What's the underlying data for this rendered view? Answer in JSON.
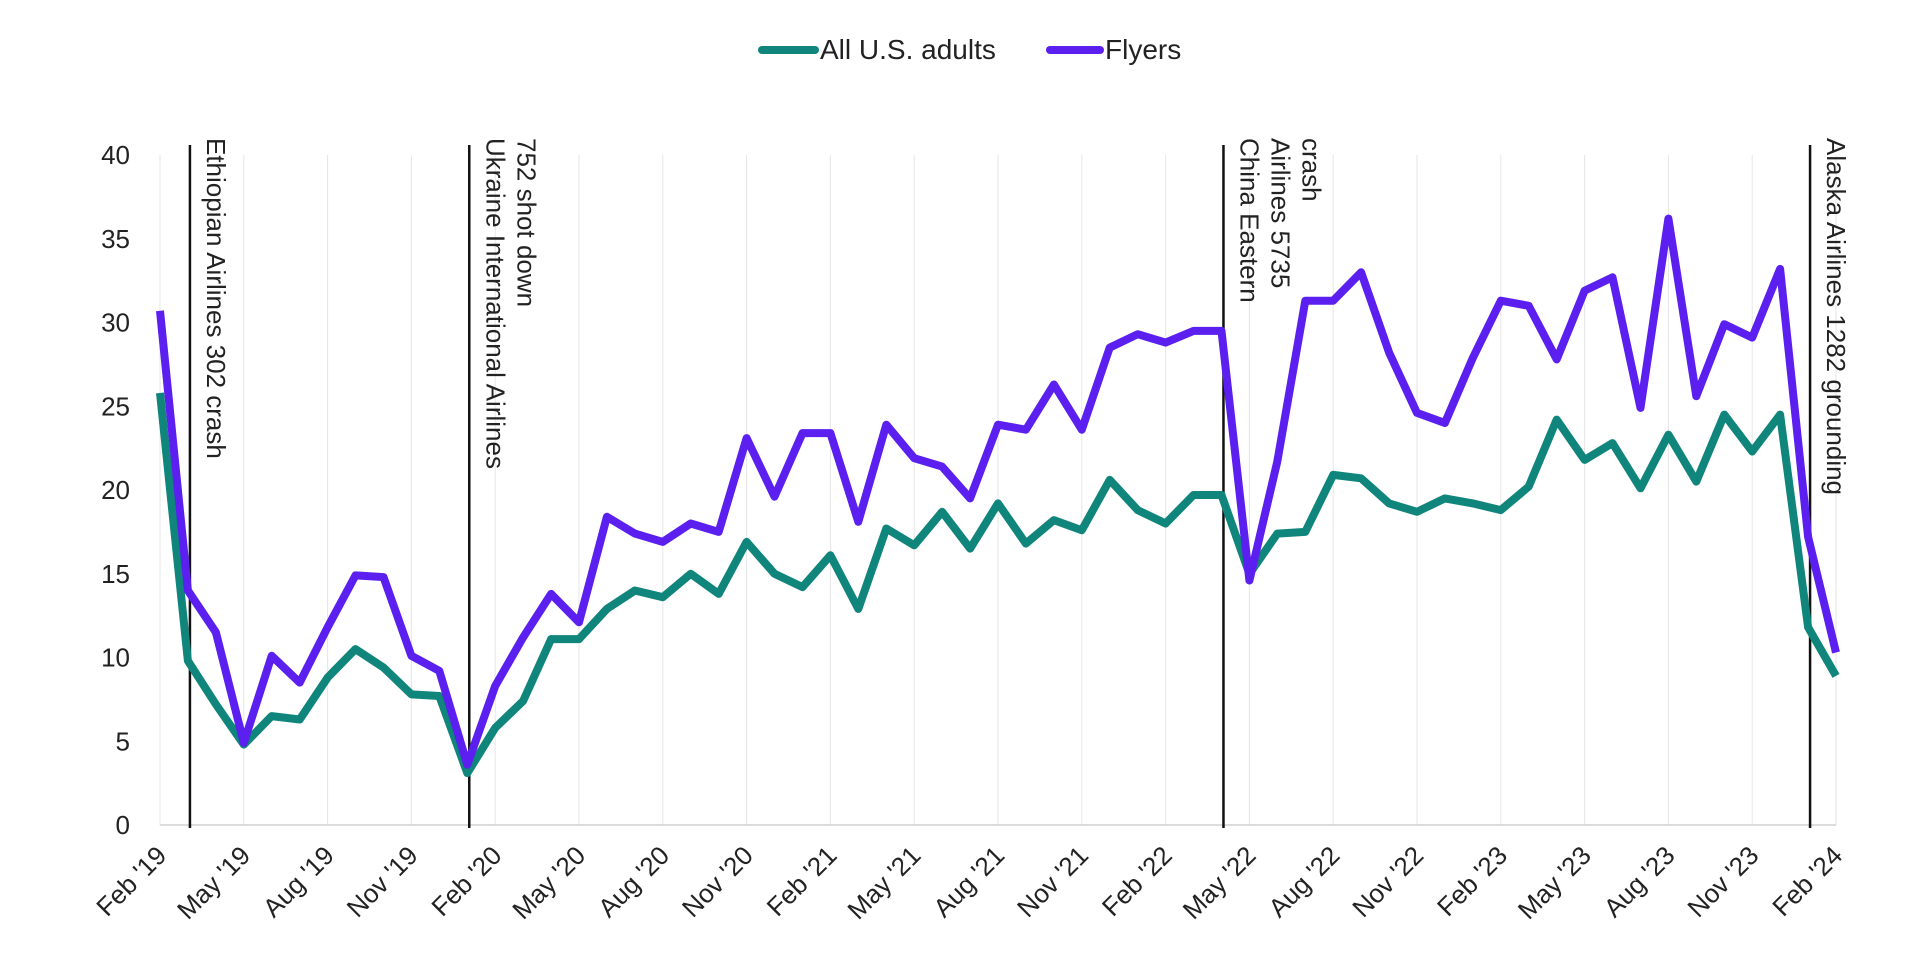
{
  "chart_data": {
    "type": "line",
    "title": "",
    "xlabel": "",
    "ylabel": "",
    "ylim": [
      0,
      40
    ],
    "yticks": [
      0,
      5,
      10,
      15,
      20,
      25,
      30,
      35,
      40
    ],
    "grid": "vertical",
    "legend": "top-center",
    "x_start": "Feb 2019",
    "x_end": "Feb 2024",
    "xtick_labels": [
      "Feb '19",
      "May '19",
      "Aug '19",
      "Nov '19",
      "Feb '20",
      "May '20",
      "Aug '20",
      "Nov '20",
      "Feb '21",
      "May '21",
      "Aug '21",
      "Nov '21",
      "Feb '22",
      "May '22",
      "Aug '22",
      "Nov '22",
      "Feb '23",
      "May '23",
      "Aug '23",
      "Nov '23",
      "Feb '24"
    ],
    "series": [
      {
        "name": "All U.S. adults",
        "color": "#0f857b",
        "values": [
          25.8,
          9.8,
          7.2,
          4.8,
          6.5,
          6.3,
          8.8,
          10.5,
          9.4,
          7.8,
          7.7,
          3.1,
          5.8,
          7.4,
          11.1,
          11.1,
          12.9,
          14.0,
          13.6,
          15.0,
          13.8,
          16.9,
          15.0,
          14.2,
          16.1,
          12.9,
          17.7,
          16.7,
          18.7,
          16.5,
          19.2,
          16.8,
          18.2,
          17.6,
          20.6,
          18.8,
          18.0,
          19.7,
          19.7,
          15.0,
          17.4,
          17.5,
          20.9,
          20.7,
          19.2,
          18.7,
          19.5,
          19.2,
          18.8,
          20.2,
          24.2,
          21.8,
          22.8,
          20.1,
          23.3,
          20.5,
          24.5,
          22.3,
          24.5,
          11.8,
          8.9
        ]
      },
      {
        "name": "Flyers",
        "color": "#5b1ff0",
        "values": [
          30.7,
          14.0,
          11.5,
          4.9,
          10.1,
          8.5,
          11.8,
          14.9,
          14.8,
          10.1,
          9.2,
          3.6,
          8.3,
          11.2,
          13.8,
          12.1,
          18.4,
          17.4,
          16.9,
          18.0,
          17.5,
          23.1,
          19.6,
          23.4,
          23.4,
          18.1,
          23.9,
          21.9,
          21.4,
          19.5,
          23.9,
          23.6,
          26.3,
          23.6,
          28.5,
          29.3,
          28.8,
          29.5,
          29.5,
          14.6,
          21.7,
          31.3,
          31.3,
          33.0,
          28.2,
          24.6,
          24.0,
          27.9,
          31.3,
          31.0,
          27.8,
          31.9,
          32.7,
          24.9,
          36.2,
          25.6,
          29.9,
          29.1,
          33.2,
          17.2,
          10.3
        ]
      }
    ],
    "annotations": [
      {
        "month_index": 1,
        "text_lines": [
          "Ethiopian Airlines 302 crash"
        ]
      },
      {
        "month_index": 11,
        "text_lines": [
          "Ukraine International Airlines",
          "752 shot down"
        ]
      },
      {
        "month_index": 38,
        "text_lines": [
          "China Eastern",
          "Airlines 5735",
          "crash"
        ]
      },
      {
        "month_index": 59,
        "text_lines": [
          "Alaska Airlines 1282 grounding"
        ]
      }
    ]
  }
}
